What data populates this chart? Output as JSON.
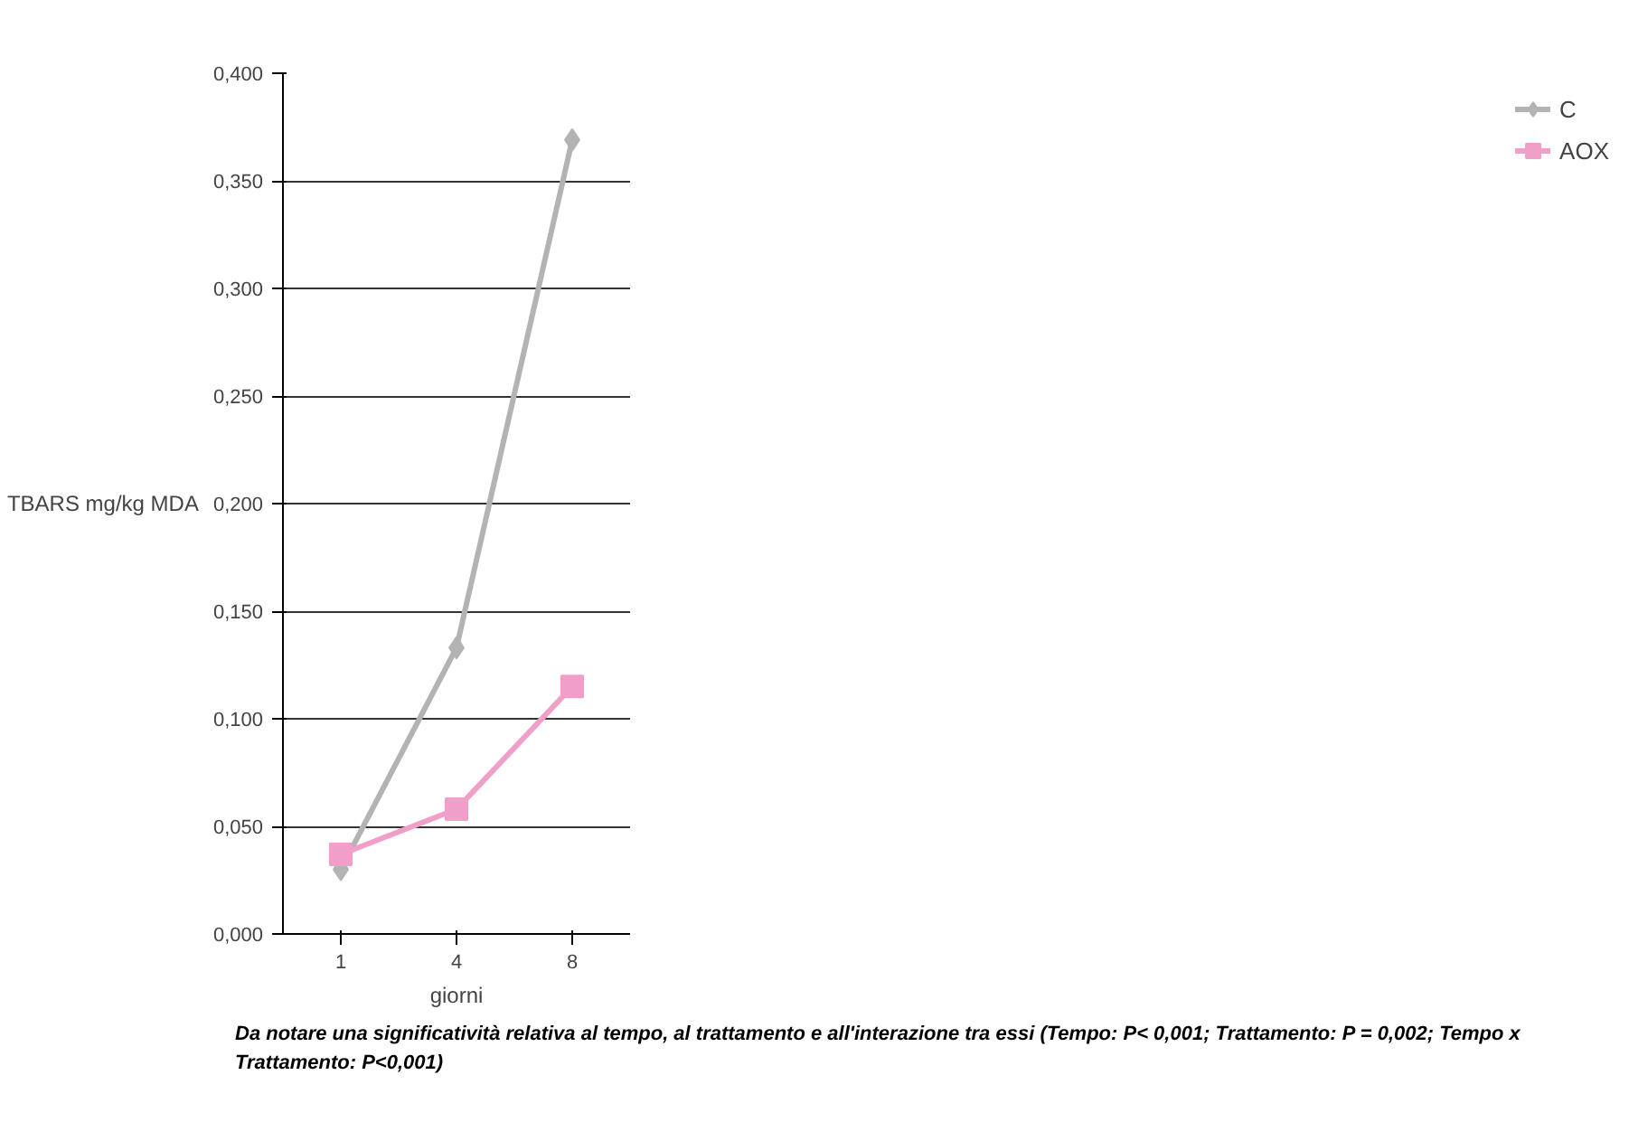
{
  "chart_data": {
    "type": "line",
    "categories": [
      "1",
      "4",
      "8"
    ],
    "xlabel": "giorni",
    "ylabel": "TBARS mg/kg MDA",
    "series": [
      {
        "name": "C",
        "color": "#b3b3b3",
        "marker": "diamond",
        "values": [
          0.03,
          0.133,
          0.369
        ]
      },
      {
        "name": "AOX",
        "color": "#f0a0c8",
        "marker": "square",
        "values": [
          0.037,
          0.058,
          0.115
        ]
      }
    ],
    "ylim": [
      0,
      0.4
    ],
    "yticks": [
      {
        "value": 0,
        "label": "0,000"
      },
      {
        "value": 0.05,
        "label": "0,050"
      },
      {
        "value": 0.1,
        "label": "0,100"
      },
      {
        "value": 0.15,
        "label": "0,150"
      },
      {
        "value": 0.2,
        "label": "0,200"
      },
      {
        "value": 0.25,
        "label": "0,250"
      },
      {
        "value": 0.3,
        "label": "0,300"
      },
      {
        "value": 0.35,
        "label": "0,350"
      },
      {
        "value": 0.4,
        "label": "0,400"
      }
    ],
    "grid": "y",
    "legend": "right",
    "annotations": [
      "Da notare una significatività relativa al tempo, al trattamento e all'interazione tra essi (Tempo: P< 0,001; Trattamento: P = 0,002; Tempo x Trattamento: P<0,001)"
    ]
  }
}
